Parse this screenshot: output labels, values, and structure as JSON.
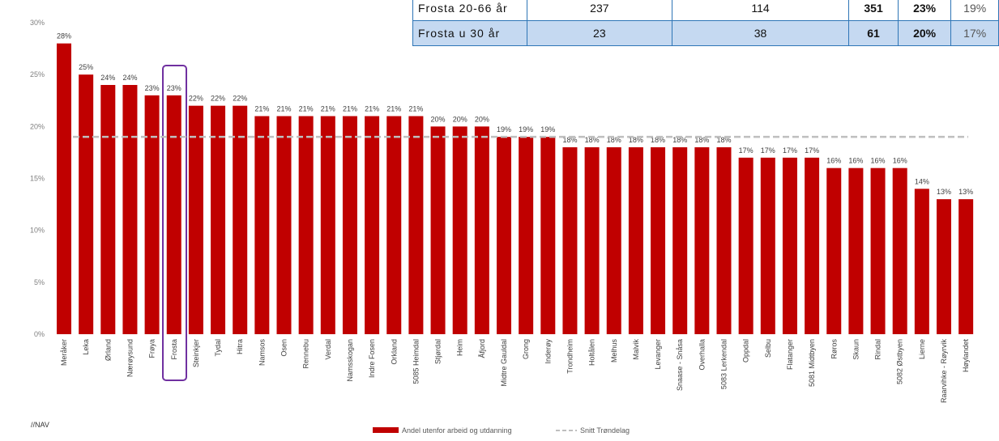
{
  "chart_data": {
    "type": "bar",
    "categories": [
      "Meråker",
      "Leka",
      "Ørland",
      "Nærøysund",
      "Frøya",
      "Frosta",
      "Steinkjer",
      "Tydal",
      "Hitra",
      "Namsos",
      "Osen",
      "Rennebu",
      "Verdal",
      "Namsskogan",
      "Indre Fosen",
      "Orkland",
      "5085 Heimdal",
      "Stjørdal",
      "Heim",
      "Åfjord",
      "Midtre Gauldal",
      "Grong",
      "Inderøy",
      "Trondheim",
      "Holtålen",
      "Melhus",
      "Malvik",
      "Levanger",
      "Snaase - Snåsa",
      "Overhalla",
      "5083 Lerkendal",
      "Oppdal",
      "Selbu",
      "Flatanger",
      "5081 Midtbyen",
      "Røros",
      "Skaun",
      "Rindal",
      "5082 Østbyen",
      "Lierne",
      "Raarvihke - Røyrvik",
      "Høylandet"
    ],
    "series": [
      {
        "name": "Andel utenfor arbeid og utdanning",
        "color": "#c00000",
        "values": [
          28,
          25,
          24,
          24,
          23,
          23,
          22,
          22,
          22,
          21,
          21,
          21,
          21,
          21,
          21,
          21,
          21,
          20,
          20,
          20,
          19,
          19,
          19,
          18,
          18,
          18,
          18,
          18,
          18,
          18,
          18,
          17,
          17,
          17,
          17,
          16,
          16,
          16,
          16,
          14,
          13,
          13
        ],
        "value_labels": [
          "28%",
          "25%",
          "24%",
          "24%",
          "23%",
          "23%",
          "22%",
          "22%",
          "22%",
          "21%",
          "21%",
          "21%",
          "21%",
          "21%",
          "21%",
          "21%",
          "21%",
          "20%",
          "20%",
          "20%",
          "19%",
          "19%",
          "19%",
          "18%",
          "18%",
          "18%",
          "18%",
          "18%",
          "18%",
          "18%",
          "18%",
          "17%",
          "17%",
          "17%",
          "17%",
          "16%",
          "16%",
          "16%",
          "16%",
          "14%",
          "13%",
          "13%"
        ]
      }
    ],
    "reference_line": {
      "name": "Snitt Trøndelag",
      "value": 19,
      "color": "#bfbfbf"
    },
    "ylim": [
      0,
      30
    ],
    "yticks": [
      {
        "value": 0,
        "label": "0%"
      },
      {
        "value": 5,
        "label": "5%"
      },
      {
        "value": 10,
        "label": "10%"
      },
      {
        "value": 15,
        "label": "15%"
      },
      {
        "value": 20,
        "label": "20%"
      },
      {
        "value": 25,
        "label": "25%"
      },
      {
        "value": 30,
        "label": "30%"
      }
    ],
    "logo": "//NAV"
  },
  "table": {
    "rows": [
      [
        "Frosta 20-66 år",
        "237",
        "114",
        "351",
        "23%",
        "19%"
      ],
      [
        "Frosta u 30 år",
        "23",
        "38",
        "61",
        "20%",
        "17%"
      ]
    ]
  }
}
